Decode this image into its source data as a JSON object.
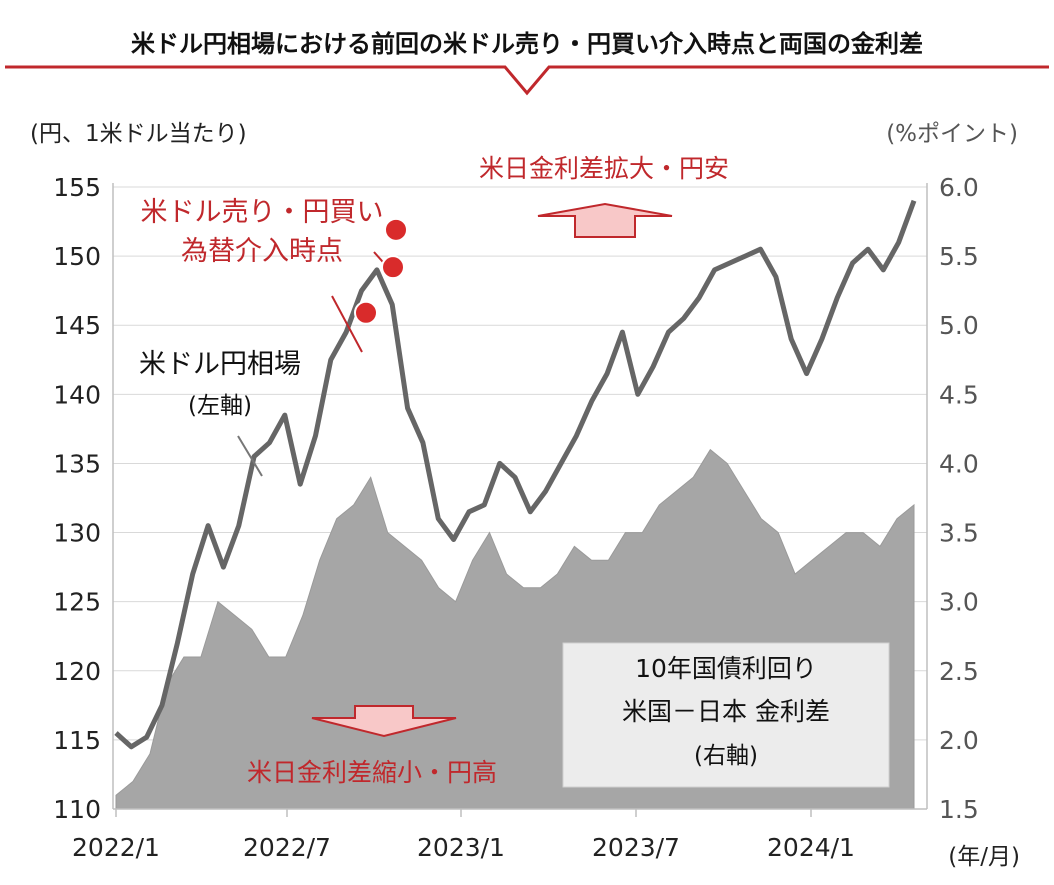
{
  "header": {
    "title": "米ドル円相場における前回の米ドル売り・円買い介入時点と両国の金利差"
  },
  "chart_data": {
    "type": "line+area",
    "axes": {
      "left_unit": "(円、1米ドル当たり)",
      "right_unit": "(%ポイント)",
      "x_unit": "(年/月)",
      "left_range": [
        110,
        155
      ],
      "right_range": [
        1.5,
        6.0
      ],
      "left_ticks": [
        "110",
        "115",
        "120",
        "125",
        "130",
        "135",
        "140",
        "145",
        "150",
        "155"
      ],
      "right_ticks": [
        "1.5",
        "2.0",
        "2.5",
        "3.0",
        "3.5",
        "4.0",
        "4.5",
        "5.0",
        "5.5",
        "6.0"
      ],
      "x_ticks": [
        "2022/1",
        "2022/7",
        "2023/1",
        "2023/7",
        "2024/1"
      ],
      "grid": true
    },
    "annotations": {
      "widen": "米日金利差拡大・円安",
      "narrow": "米日金利差縮小・円高",
      "intervention_line1": "米ドル売り・円買い",
      "intervention_line2": "為替介入時点",
      "fx_label": "米ドル円相場",
      "fx_axis": "(左軸)",
      "spread_line1": "10年国債利回り",
      "spread_line2": "米国－日本 金利差",
      "spread_axis": "(右軸)"
    },
    "series": [
      {
        "name": "米ドル円相場",
        "axis": "left",
        "x": [
          "2022/01",
          "2022/02",
          "2022/03",
          "2022/03",
          "2022/04",
          "2022/04",
          "2022/05",
          "2022/05",
          "2022/06",
          "2022/06",
          "2022/07",
          "2022/07",
          "2022/08",
          "2022/08",
          "2022/09",
          "2022/09",
          "2022/10",
          "2022/10",
          "2022/11",
          "2022/11",
          "2022/12",
          "2022/12",
          "2023/01",
          "2023/01",
          "2023/02",
          "2023/02",
          "2023/03",
          "2023/03",
          "2023/04",
          "2023/04",
          "2023/05",
          "2023/05",
          "2023/06",
          "2023/06",
          "2023/07",
          "2023/07",
          "2023/08",
          "2023/08",
          "2023/09",
          "2023/09",
          "2023/10",
          "2023/10",
          "2023/11",
          "2023/11",
          "2023/12",
          "2023/12",
          "2024/01",
          "2024/01",
          "2024/02",
          "2024/03",
          "2024/03",
          "2024/04",
          "2024/04"
        ],
        "values": [
          115.5,
          114.5,
          115.2,
          117.5,
          122.0,
          127.0,
          130.5,
          127.5,
          130.5,
          135.5,
          136.5,
          138.5,
          133.5,
          137.0,
          142.5,
          144.5,
          147.5,
          149.0,
          146.5,
          139.0,
          136.5,
          131.0,
          129.5,
          131.5,
          132.0,
          135.0,
          134.0,
          131.5,
          133.0,
          135.0,
          137.0,
          139.5,
          141.5,
          144.5,
          140.0,
          142.0,
          144.5,
          145.5,
          147.0,
          149.0,
          149.5,
          150.0,
          150.5,
          148.5,
          144.0,
          141.5,
          144.0,
          147.0,
          149.5,
          150.5,
          149.0,
          151.0,
          154.0
        ]
      },
      {
        "name": "10年国債利回り 米国－日本 金利差",
        "axis": "right",
        "x": [
          "2022/01",
          "2022/02",
          "2022/03",
          "2022/04",
          "2022/04",
          "2022/05",
          "2022/06",
          "2022/06",
          "2022/07",
          "2022/07",
          "2022/08",
          "2022/08",
          "2022/09",
          "2022/09",
          "2022/10",
          "2022/10",
          "2022/11",
          "2022/11",
          "2022/12",
          "2022/12",
          "2023/01",
          "2023/02",
          "2023/02",
          "2023/03",
          "2023/03",
          "2023/04",
          "2023/05",
          "2023/05",
          "2023/06",
          "2023/07",
          "2023/07",
          "2023/08",
          "2023/08",
          "2023/09",
          "2023/09",
          "2023/10",
          "2023/10",
          "2023/11",
          "2023/11",
          "2023/12",
          "2023/12",
          "2024/01",
          "2024/01",
          "2024/02",
          "2024/03",
          "2024/03",
          "2024/04",
          "2024/04"
        ],
        "values": [
          1.6,
          1.7,
          1.9,
          2.4,
          2.6,
          2.6,
          3.0,
          2.9,
          2.8,
          2.6,
          2.6,
          2.9,
          3.3,
          3.6,
          3.7,
          3.9,
          3.5,
          3.4,
          3.3,
          3.1,
          3.0,
          3.3,
          3.5,
          3.2,
          3.1,
          3.1,
          3.2,
          3.4,
          3.3,
          3.3,
          3.5,
          3.5,
          3.7,
          3.8,
          3.9,
          4.1,
          4.0,
          3.8,
          3.6,
          3.5,
          3.2,
          3.3,
          3.4,
          3.5,
          3.5,
          3.4,
          3.6,
          3.7
        ]
      }
    ],
    "intervention_points": [
      {
        "date": "2022/09",
        "value": 145.9
      },
      {
        "date": "2022/10",
        "value": 151.9
      },
      {
        "date": "2022/10",
        "value": 149.2
      }
    ]
  }
}
